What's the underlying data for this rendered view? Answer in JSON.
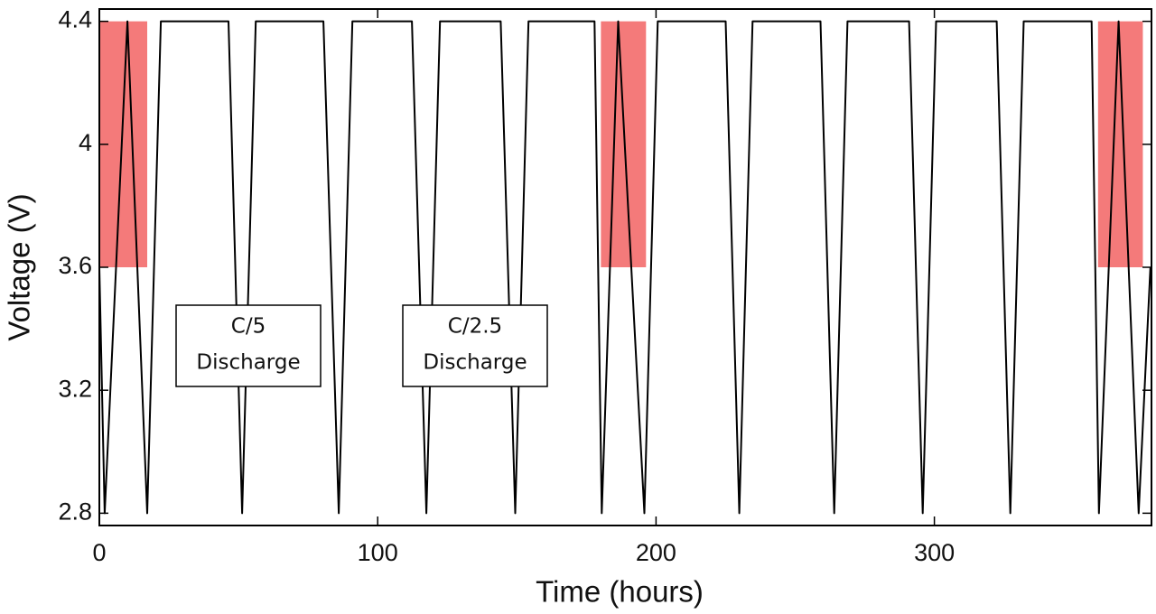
{
  "chart_data": {
    "type": "line",
    "x_label": "Time (hours)",
    "y_label": "Voltage (V)",
    "x": [
      0,
      1.9,
      10.1,
      17.2,
      22.1,
      46.4,
      51.3,
      56.2,
      80.5,
      86.0,
      90.9,
      112.3,
      117.5,
      122.4,
      144.2,
      149.4,
      154.2,
      177.9,
      180.5,
      186.4,
      195.8,
      200.6,
      225.0,
      229.9,
      234.7,
      259.1,
      264.0,
      268.8,
      290.9,
      295.8,
      300.6,
      322.4,
      327.3,
      332.1,
      356.5,
      359.1,
      366.2,
      373.4,
      377.6
    ],
    "series": [
      {
        "color": "#000000",
        "values": [
          3.6,
          2.8,
          4.4,
          2.8,
          4.4,
          4.4,
          2.8,
          4.4,
          4.4,
          2.8,
          4.4,
          4.4,
          2.8,
          4.4,
          4.4,
          2.8,
          4.4,
          4.4,
          2.8,
          4.4,
          2.8,
          4.4,
          4.4,
          2.8,
          4.4,
          4.4,
          2.8,
          4.4,
          4.4,
          2.8,
          4.4,
          4.4,
          2.8,
          4.4,
          4.4,
          2.8,
          4.4,
          2.8,
          3.6
        ]
      }
    ],
    "shade_color": "#f47a7a",
    "shaded_regions": [
      {
        "x": [
          0.3,
          17.2
        ],
        "y": [
          3.6,
          4.4
        ]
      },
      {
        "x": [
          180.2,
          196.4
        ],
        "y": [
          3.6,
          4.4
        ]
      },
      {
        "x": [
          358.8,
          374.9
        ],
        "y": [
          3.6,
          4.4
        ]
      }
    ],
    "annotations": [
      {
        "lines": [
          "C/5",
          "Discharge"
        ]
      },
      {
        "lines": [
          "C/2.5",
          "Discharge"
        ]
      }
    ],
    "xlim": [
      0,
      378
    ],
    "ylim": [
      2.76,
      4.44
    ],
    "xticks": [
      0,
      100,
      200,
      300
    ],
    "yticks": [
      2.8,
      3.2,
      3.6,
      4,
      4.4
    ]
  }
}
